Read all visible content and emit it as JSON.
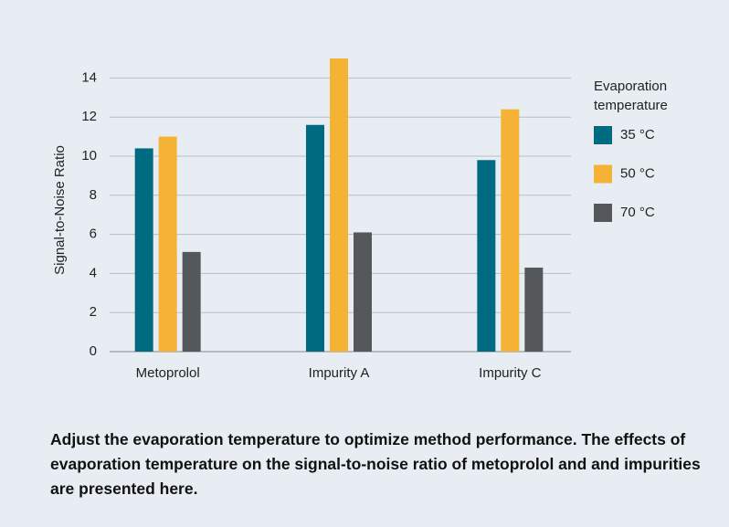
{
  "chart_data": {
    "type": "bar",
    "categories": [
      "Metoprolol",
      "Impurity A",
      "Impurity C"
    ],
    "y_label": "Signal-to-Noise Ratio",
    "legend_title": "Evaporation temperature",
    "series": [
      {
        "name": "35 °C",
        "color": "#006a80",
        "values": [
          10.4,
          11.6,
          9.8
        ]
      },
      {
        "name": "50 °C",
        "color": "#f5b335",
        "values": [
          11.0,
          15.0,
          12.4
        ]
      },
      {
        "name": "70 °C",
        "color": "#54585a",
        "values": [
          5.1,
          6.1,
          4.3
        ]
      }
    ],
    "ylim": [
      0,
      15
    ],
    "yticks": [
      0,
      2,
      4,
      6,
      8,
      10,
      12,
      14
    ],
    "grid": true,
    "caption": "Adjust the evaporation temperature to optimize method performance. The effects of evaporation temperature on the signal-to-noise ratio of metoprolol and and impurities are presented here."
  }
}
